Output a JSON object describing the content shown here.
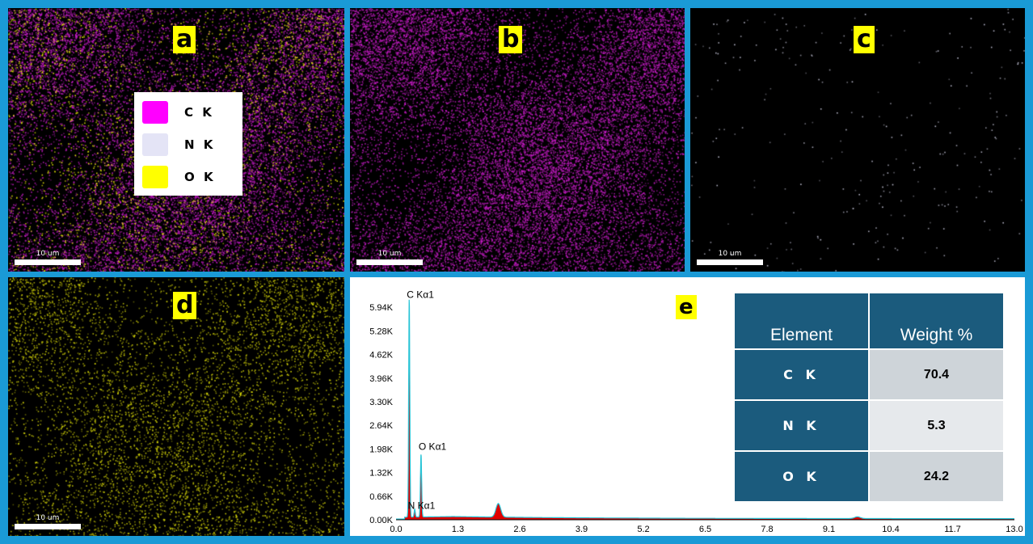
{
  "panels": {
    "a": {
      "tag": "a",
      "scale_label": "10 um"
    },
    "b": {
      "tag": "b",
      "scale_label": "10 um"
    },
    "c": {
      "tag": "c",
      "scale_label": "10 um"
    },
    "d": {
      "tag": "d",
      "scale_label": "10 um"
    },
    "e": {
      "tag": "e"
    }
  },
  "legend": [
    {
      "label": "C K",
      "color": "#ff00ff"
    },
    {
      "label": "N K",
      "color": "#e4e4f6"
    },
    {
      "label": "O K",
      "color": "#ffff00"
    }
  ],
  "map_colors": {
    "carbon": "#d21ed2",
    "nitrogen": "#e8e8ff",
    "oxygen": "#e6e60a"
  },
  "spectrum": {
    "x_ticks": [
      "0.0",
      "1.3",
      "2.6",
      "3.9",
      "5.2",
      "6.5",
      "7.8",
      "9.1",
      "10.4",
      "11.7",
      "13.0"
    ],
    "y_ticks": [
      "0.00K",
      "0.66K",
      "1.32K",
      "1.98K",
      "2.64K",
      "3.30K",
      "3.96K",
      "4.62K",
      "5.28K",
      "5.94K"
    ],
    "x_range": [
      0,
      13.0
    ],
    "y_range": [
      0,
      6.6
    ],
    "peak_labels": [
      {
        "text": "C  Kα1",
        "x": 0.277,
        "y": 6.2
      },
      {
        "text": "O  Kα1",
        "x": 0.525,
        "y": 1.95
      },
      {
        "text": "N  Kα1",
        "x": 0.3,
        "y": 0.3
      }
    ],
    "colors": {
      "fill": "#e00000",
      "line": "#29c4d6"
    }
  },
  "table": {
    "headers": [
      "Element",
      "Weight %"
    ],
    "rows": [
      {
        "element": "C  K",
        "weight": "70.4"
      },
      {
        "element": "N  K",
        "weight": "5.3"
      },
      {
        "element": "O  K",
        "weight": "24.2"
      }
    ]
  }
}
